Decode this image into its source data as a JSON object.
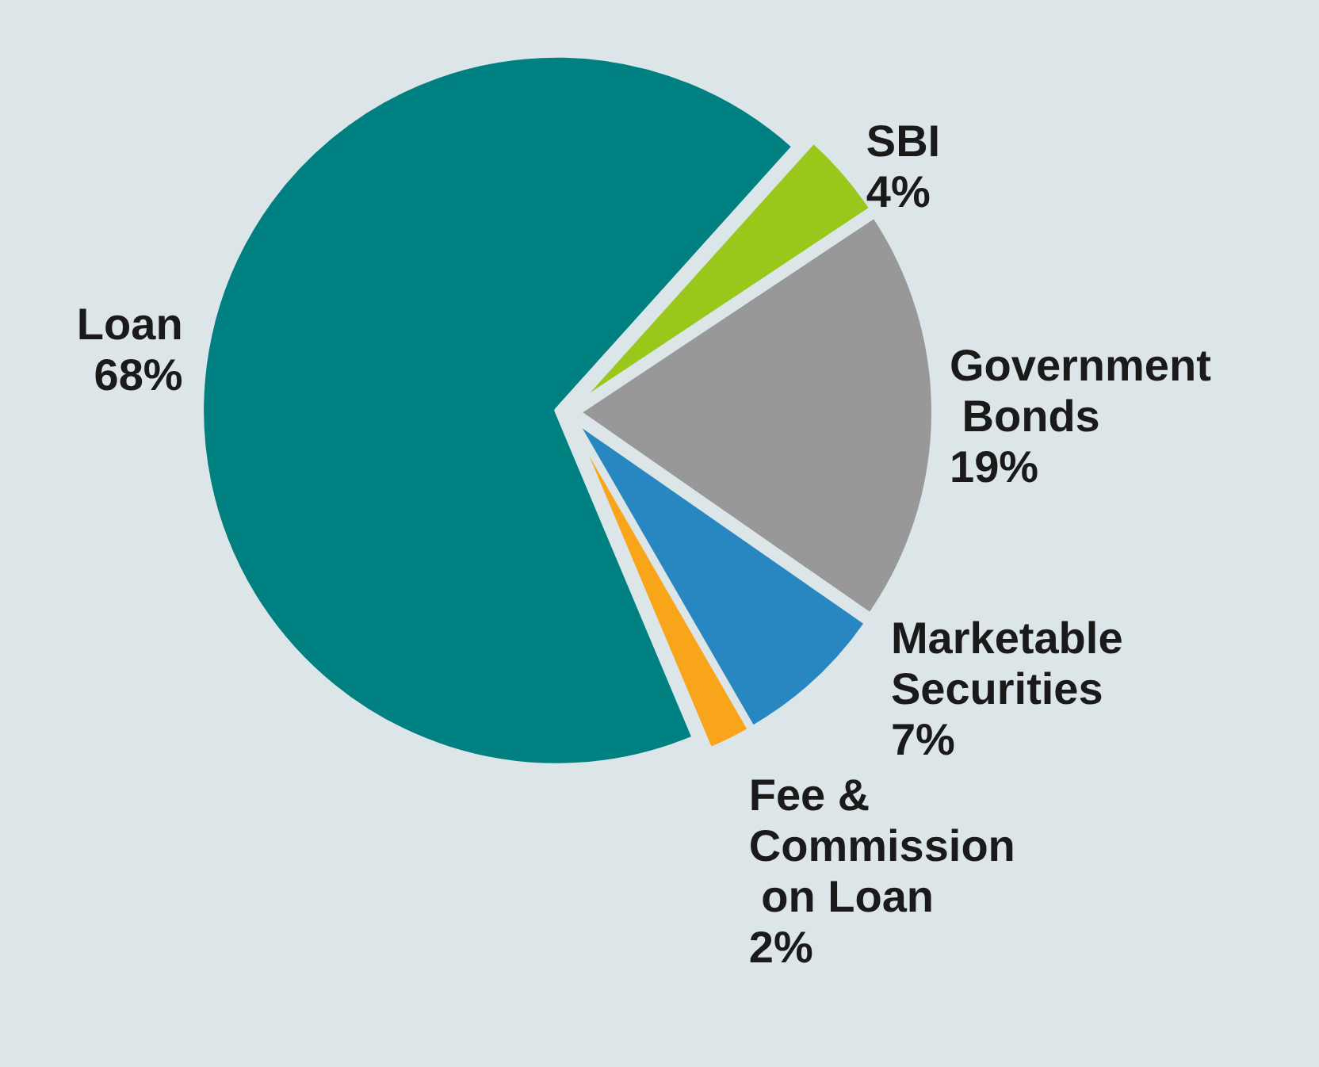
{
  "chart_data": {
    "type": "pie",
    "categories": [
      "SBI",
      "Government Bonds",
      "Marketable Securities",
      "Fee & Commission on Loan",
      "Loan"
    ],
    "values": [
      4,
      19,
      7,
      2,
      68
    ],
    "colors": [
      "#99c71a",
      "#989898",
      "#2887c0",
      "#f9a51a",
      "#008080"
    ],
    "value_labels": [
      "4%",
      "19%",
      "7%",
      "2%",
      "68%"
    ],
    "legend": false
  }
}
